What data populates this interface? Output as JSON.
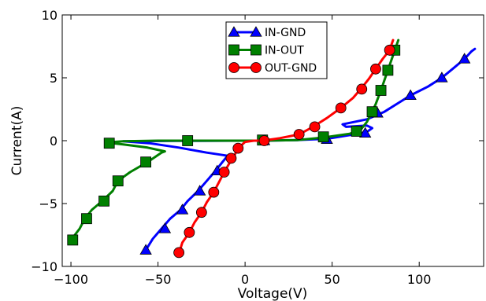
{
  "chart_data": {
    "type": "line",
    "xlabel": "Voltage(V)",
    "ylabel": "Current(A)",
    "xlim": [
      -105,
      137
    ],
    "ylim": [
      -10,
      10
    ],
    "xticks": [
      -100,
      -50,
      0,
      50,
      100
    ],
    "yticks": [
      -10,
      -5,
      0,
      5,
      10
    ],
    "xtick_labels": [
      "−100",
      "−50",
      "0",
      "50",
      "100"
    ],
    "ytick_labels": [
      "−10",
      "−5",
      "0",
      "5",
      "10"
    ],
    "grid": false,
    "legend_position": "top-center",
    "series": [
      {
        "name": "IN-GND",
        "color": "#0000ff",
        "marker": "triangle",
        "line": [
          [
            -57,
            -8.7
          ],
          [
            -53,
            -7.8
          ],
          [
            -48,
            -7.0
          ],
          [
            -43,
            -6.2
          ],
          [
            -37,
            -5.5
          ],
          [
            -33,
            -4.8
          ],
          [
            -27,
            -4.0
          ],
          [
            -22,
            -3.2
          ],
          [
            -17,
            -2.4
          ],
          [
            -13,
            -1.7
          ],
          [
            -10,
            -1.2
          ],
          [
            -22,
            -0.95
          ],
          [
            -38,
            -0.55
          ],
          [
            -55,
            -0.2
          ],
          [
            -70,
            -0.05
          ],
          [
            -40,
            -0.02
          ],
          [
            0,
            0
          ],
          [
            10,
            0
          ],
          [
            30,
            0.05
          ],
          [
            47,
            0.15
          ],
          [
            58,
            0.4
          ],
          [
            65,
            0.55
          ],
          [
            70,
            0.7
          ],
          [
            73,
            1.0
          ],
          [
            70,
            1.2
          ],
          [
            58,
            1.1
          ],
          [
            56,
            1.3
          ],
          [
            70,
            1.7
          ],
          [
            80,
            2.3
          ],
          [
            95,
            3.6
          ],
          [
            105,
            4.3
          ],
          [
            113,
            5.0
          ],
          [
            120,
            5.8
          ],
          [
            126,
            6.5
          ],
          [
            130,
            7.1
          ],
          [
            132,
            7.3
          ]
        ],
        "markers": [
          [
            -57,
            -8.7
          ],
          [
            -46,
            -7.0
          ],
          [
            -36,
            -5.5
          ],
          [
            -26,
            -4.0
          ],
          [
            -16,
            -2.4
          ],
          [
            11,
            0
          ],
          [
            47,
            0.1
          ],
          [
            69,
            0.6
          ],
          [
            76,
            2.2
          ],
          [
            95,
            3.6
          ],
          [
            113,
            5.0
          ],
          [
            126,
            6.5
          ]
        ]
      },
      {
        "name": "IN-OUT",
        "color": "#008000",
        "marker": "square",
        "line": [
          [
            -100,
            -7.9
          ],
          [
            -95,
            -7.0
          ],
          [
            -92,
            -6.2
          ],
          [
            -88,
            -5.5
          ],
          [
            -82,
            -4.8
          ],
          [
            -76,
            -4.0
          ],
          [
            -73,
            -3.2
          ],
          [
            -66,
            -2.5
          ],
          [
            -56,
            -1.7
          ],
          [
            -48,
            -0.95
          ],
          [
            -46,
            -0.85
          ],
          [
            -56,
            -0.55
          ],
          [
            -70,
            -0.3
          ],
          [
            -80,
            -0.15
          ],
          [
            -70,
            -0.05
          ],
          [
            -50,
            0
          ],
          [
            -33,
            0
          ],
          [
            0,
            0
          ],
          [
            10,
            0
          ],
          [
            30,
            0.05
          ],
          [
            45,
            0.25
          ],
          [
            60,
            0.55
          ],
          [
            66,
            0.8
          ],
          [
            70,
            1.5
          ],
          [
            73,
            2.3
          ],
          [
            75,
            2.9
          ],
          [
            78,
            4.0
          ],
          [
            82,
            5.6
          ],
          [
            86,
            7.2
          ],
          [
            88,
            8.0
          ]
        ],
        "markers": [
          [
            -99,
            -7.9
          ],
          [
            -91,
            -6.2
          ],
          [
            -81,
            -4.8
          ],
          [
            -73,
            -3.2
          ],
          [
            -57,
            -1.7
          ],
          [
            -78,
            -0.2
          ],
          [
            -33,
            0
          ],
          [
            10,
            0.05
          ],
          [
            45,
            0.3
          ],
          [
            64,
            0.75
          ],
          [
            73,
            2.3
          ],
          [
            78,
            4.0
          ],
          [
            82,
            5.6
          ],
          [
            86,
            7.2
          ]
        ]
      },
      {
        "name": "OUT-GND",
        "color": "#ff0000",
        "marker": "circle",
        "line": [
          [
            -38,
            -9.0
          ],
          [
            -36,
            -8.1
          ],
          [
            -32,
            -7.3
          ],
          [
            -29,
            -6.5
          ],
          [
            -25,
            -5.7
          ],
          [
            -22,
            -4.9
          ],
          [
            -18,
            -4.1
          ],
          [
            -15,
            -3.3
          ],
          [
            -12,
            -2.5
          ],
          [
            -9,
            -1.8
          ],
          [
            -7,
            -1.4
          ],
          [
            -4,
            -0.6
          ],
          [
            0,
            -0.1
          ],
          [
            5,
            0
          ],
          [
            10,
            0
          ],
          [
            20,
            0.2
          ],
          [
            31,
            0.5
          ],
          [
            39,
            1.1
          ],
          [
            47,
            1.8
          ],
          [
            55,
            2.6
          ],
          [
            62,
            3.4
          ],
          [
            67,
            4.2
          ],
          [
            71,
            4.9
          ],
          [
            75,
            5.7
          ],
          [
            79,
            6.5
          ],
          [
            83,
            7.2
          ],
          [
            85,
            8.0
          ]
        ],
        "markers": [
          [
            -38,
            -8.9
          ],
          [
            -32,
            -7.3
          ],
          [
            -25,
            -5.7
          ],
          [
            -18,
            -4.1
          ],
          [
            -12,
            -2.5
          ],
          [
            -8,
            -1.4
          ],
          [
            -4,
            -0.6
          ],
          [
            11,
            0
          ],
          [
            31,
            0.5
          ],
          [
            40,
            1.1
          ],
          [
            55,
            2.6
          ],
          [
            67,
            4.1
          ],
          [
            75,
            5.7
          ],
          [
            83,
            7.2
          ]
        ]
      }
    ]
  }
}
